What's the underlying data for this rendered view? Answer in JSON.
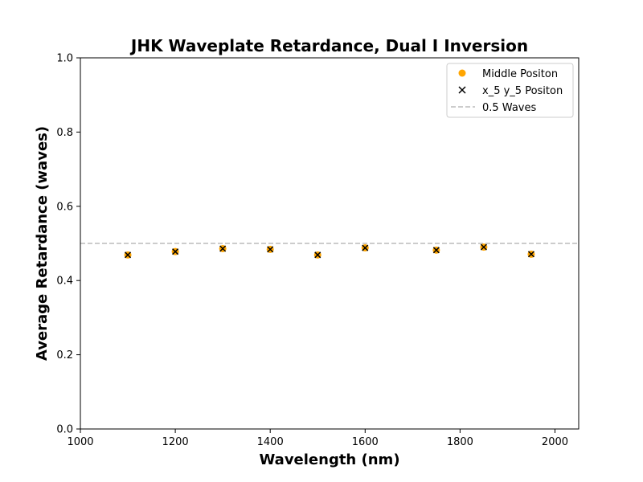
{
  "chart_data": {
    "type": "scatter",
    "title": "JHK Waveplate Retardance, Dual I Inversion",
    "xlabel": "Wavelength (nm)",
    "ylabel": "Average Retardance (waves)",
    "xlim": [
      1000,
      2050
    ],
    "ylim": [
      0.0,
      1.0
    ],
    "xticks": [
      1000,
      1200,
      1400,
      1600,
      1800,
      2000
    ],
    "xtick_labels": [
      "1000",
      "1200",
      "1400",
      "1600",
      "1800",
      "2000"
    ],
    "yticks": [
      0.0,
      0.2,
      0.4,
      0.6,
      0.8,
      1.0
    ],
    "ytick_labels": [
      "0.0",
      "0.2",
      "0.4",
      "0.6",
      "0.8",
      "1.0"
    ],
    "grid": false,
    "legend_position": "top-right",
    "series": [
      {
        "name": "Middle Positon",
        "marker": "circle",
        "color": "#ffa500",
        "x": [
          1100,
          1200,
          1300,
          1400,
          1500,
          1600,
          1750,
          1850,
          1950
        ],
        "y": [
          0.469,
          0.478,
          0.486,
          0.484,
          0.469,
          0.488,
          0.482,
          0.49,
          0.471
        ]
      },
      {
        "name": "x_5 y_5 Positon",
        "marker": "x",
        "color": "#000000",
        "x": [
          1100,
          1200,
          1300,
          1400,
          1500,
          1600,
          1750,
          1850,
          1950
        ],
        "y": [
          0.469,
          0.478,
          0.486,
          0.484,
          0.469,
          0.488,
          0.482,
          0.49,
          0.471
        ]
      }
    ],
    "reference_line": {
      "name": "0.5 Waves",
      "y": 0.5,
      "style": "dashed",
      "color": "#bbbbbb"
    }
  }
}
